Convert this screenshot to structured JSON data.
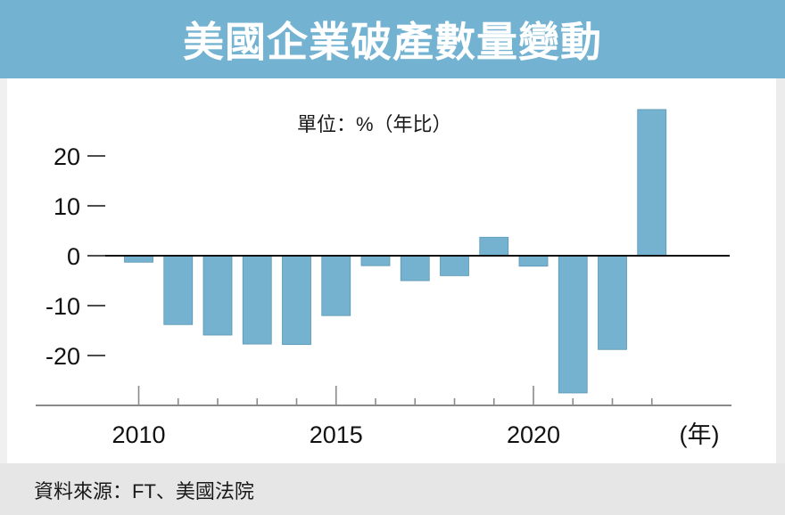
{
  "header": {
    "title": "美國企業破產數量變動"
  },
  "footer": {
    "source": "資料來源：FT、美國法院"
  },
  "colors": {
    "header_bg": "#73b2d1",
    "bar": "#74b2d0",
    "bar_edge": "#5b97b5",
    "footer_bg": "#e6e6e6"
  },
  "chart_data": {
    "type": "bar",
    "title": "美國企業破產數量變動",
    "unit_label": "單位：%（年比）",
    "xlabel": "（年）",
    "ylabel": "",
    "categories": [
      2010,
      2011,
      2012,
      2013,
      2014,
      2015,
      2016,
      2017,
      2018,
      2019,
      2020,
      2021,
      2022,
      2023
    ],
    "values": [
      -1.3,
      -13.8,
      -15.9,
      -17.7,
      -17.8,
      -12.0,
      -2.0,
      -5.0,
      -4.0,
      3.7,
      -2.1,
      -27.5,
      -18.8,
      29.3
    ],
    "ylim": [
      -30,
      30
    ],
    "yticks": [
      20,
      10,
      0,
      -10,
      -20
    ],
    "ytick_labels": [
      "20",
      "10",
      "0",
      "-10",
      "-20"
    ],
    "xtick_major": [
      2010,
      2015,
      2020
    ],
    "xtick_labels": [
      "2010",
      "2015",
      "2020"
    ],
    "x_axis_unit": "(年)",
    "grid": false,
    "legend": "none"
  }
}
